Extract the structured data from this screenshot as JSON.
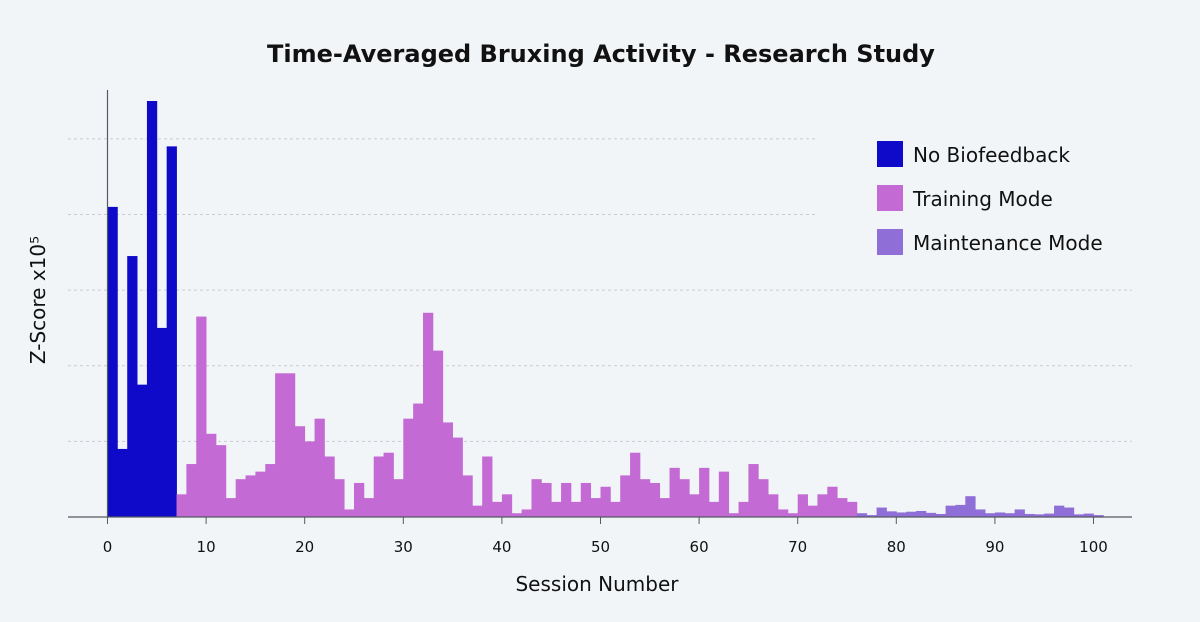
{
  "chart_data": {
    "type": "bar",
    "title": "Time-Averaged Bruxing Activity - Research Study",
    "xlabel": "Session Number",
    "ylabel": "Z-Score  x10⁵",
    "xlim": [
      -4,
      104
    ],
    "ylim": [
      0,
      11
    ],
    "xticks": [
      0,
      10,
      20,
      30,
      40,
      50,
      60,
      70,
      80,
      90,
      100
    ],
    "ygrid": [
      2,
      4,
      6,
      8,
      10
    ],
    "grid": true,
    "legend_position": "top-right",
    "series": [
      {
        "name": "No Biofeedback",
        "color": "#0f0ac9",
        "x": [
          0,
          1,
          2,
          3,
          4,
          5,
          6
        ],
        "values": [
          8.2,
          1.8,
          6.9,
          3.5,
          11.0,
          5.0,
          9.8
        ]
      },
      {
        "name": "Training Mode",
        "color": "#c36ad4",
        "x": [
          7,
          8,
          9,
          10,
          11,
          12,
          13,
          14,
          15,
          16,
          17,
          18,
          19,
          20,
          21,
          22,
          23,
          24,
          25,
          26,
          27,
          28,
          29,
          30,
          31,
          32,
          33,
          34,
          35,
          36,
          37,
          38,
          39,
          40,
          41,
          42,
          43,
          44,
          45,
          46,
          47,
          48,
          49,
          50,
          51,
          52,
          53,
          54,
          55,
          56,
          57,
          58,
          59,
          60,
          61,
          62,
          63,
          64,
          65,
          66,
          67,
          68,
          69,
          70,
          71,
          72,
          73,
          74,
          75
        ],
        "values": [
          0.6,
          1.4,
          5.3,
          2.2,
          1.9,
          0.5,
          1.0,
          1.1,
          1.2,
          1.4,
          3.8,
          3.8,
          2.4,
          2.0,
          2.6,
          1.6,
          1.0,
          0.2,
          0.9,
          0.5,
          1.6,
          1.7,
          1.0,
          2.6,
          3.0,
          5.4,
          4.4,
          2.5,
          2.1,
          1.1,
          0.3,
          1.6,
          0.4,
          0.6,
          0.1,
          0.2,
          1.0,
          0.9,
          0.4,
          0.9,
          0.4,
          0.9,
          0.5,
          0.8,
          0.4,
          1.1,
          1.7,
          1.0,
          0.9,
          0.5,
          1.3,
          1.0,
          0.6,
          1.3,
          0.4,
          1.2,
          0.1,
          0.4,
          1.4,
          1.0,
          0.6,
          0.2,
          0.1,
          0.6,
          0.3,
          0.6,
          0.8,
          0.5,
          0.4
        ]
      },
      {
        "name": "Maintenance Mode",
        "color": "#8f6ed8",
        "x": [
          76,
          77,
          78,
          79,
          80,
          81,
          82,
          83,
          84,
          85,
          86,
          87,
          88,
          89,
          90,
          91,
          92,
          93,
          94,
          95,
          96,
          97,
          98,
          99,
          100
        ],
        "values": [
          0.1,
          0.05,
          0.25,
          0.15,
          0.12,
          0.14,
          0.16,
          0.11,
          0.08,
          0.3,
          0.32,
          0.55,
          0.2,
          0.1,
          0.12,
          0.1,
          0.2,
          0.08,
          0.07,
          0.09,
          0.3,
          0.25,
          0.07,
          0.09,
          0.05
        ]
      }
    ]
  }
}
